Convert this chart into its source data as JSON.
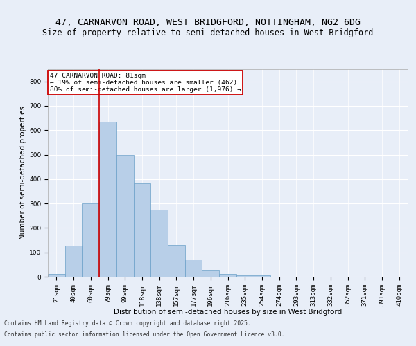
{
  "title1": "47, CARNARVON ROAD, WEST BRIDGFORD, NOTTINGHAM, NG2 6DG",
  "title2": "Size of property relative to semi-detached houses in West Bridgford",
  "xlabel": "Distribution of semi-detached houses by size in West Bridgford",
  "ylabel": "Number of semi-detached properties",
  "categories": [
    "21sqm",
    "40sqm",
    "60sqm",
    "79sqm",
    "99sqm",
    "118sqm",
    "138sqm",
    "157sqm",
    "177sqm",
    "196sqm",
    "216sqm",
    "235sqm",
    "254sqm",
    "274sqm",
    "293sqm",
    "313sqm",
    "332sqm",
    "352sqm",
    "371sqm",
    "391sqm",
    "410sqm"
  ],
  "values": [
    10,
    128,
    300,
    635,
    500,
    383,
    275,
    130,
    72,
    28,
    12,
    5,
    5,
    0,
    0,
    0,
    0,
    0,
    0,
    0,
    0
  ],
  "bar_color": "#b8cfe8",
  "bar_edge_color": "#6a9fc8",
  "vline_color": "#cc0000",
  "annotation_title": "47 CARNARVON ROAD: 81sqm",
  "annotation_line1": "← 19% of semi-detached houses are smaller (462)",
  "annotation_line2": "80% of semi-detached houses are larger (1,976) →",
  "annotation_box_color": "#cc0000",
  "ylim": [
    0,
    850
  ],
  "yticks": [
    0,
    100,
    200,
    300,
    400,
    500,
    600,
    700,
    800
  ],
  "bg_color": "#e8eef8",
  "plot_bg_color": "#e8eef8",
  "footer1": "Contains HM Land Registry data © Crown copyright and database right 2025.",
  "footer2": "Contains public sector information licensed under the Open Government Licence v3.0.",
  "title1_fontsize": 9.5,
  "title2_fontsize": 8.5,
  "axis_label_fontsize": 7.5,
  "tick_fontsize": 6.5,
  "footer_fontsize": 5.8,
  "annot_fontsize": 6.8
}
